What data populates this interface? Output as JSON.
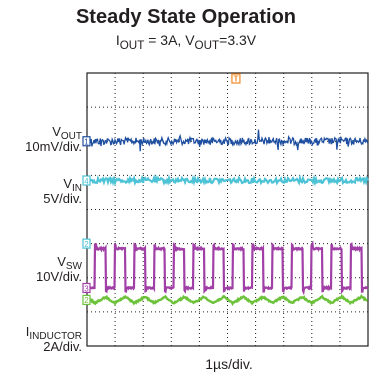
{
  "chart_data": {
    "type": "line",
    "title": "Steady State Operation",
    "subtitle": {
      "iout_sym": "I",
      "iout_sub": "OUT",
      "iout_val": " = 3A,  ",
      "vout_sym": "V",
      "vout_sub": "OUT",
      "vout_val": "=3.3V"
    },
    "xlabel": "1µs/div.",
    "grid": true,
    "divisions": {
      "x": 10,
      "y": 8
    },
    "timebase_us_per_div": 1,
    "switching_period_us": 0.7,
    "trigger_marker": "T",
    "series": [
      {
        "name": "VOUT",
        "sym": "V",
        "sub": "OUT",
        "scale": "10mV/div.",
        "channel": "1",
        "color": "#1f4fa0",
        "ground_div": 6.0,
        "waveform": "ripple-with-spikes"
      },
      {
        "name": "VIN",
        "sym": "V",
        "sub": "IN",
        "scale": "5V/div.",
        "channel": "4",
        "color": "#4ec3d6",
        "ground_div": 4.85,
        "waveform": "flat"
      },
      {
        "name": "VSW",
        "sym": "V",
        "sub": "SW",
        "scale": "10V/div.",
        "channel": "3",
        "color": "#a03fa6",
        "ground_div": 1.7,
        "amplitude_div": 1.15,
        "duty": 0.55,
        "waveform": "square"
      },
      {
        "name": "IINDUCTOR",
        "sym": "I",
        "sub": "INDUCTOR",
        "scale": "2A/div.",
        "channel": "2",
        "color": "#6cc23a",
        "ground_div": 1.35,
        "waveform": "triangle"
      }
    ],
    "extra_markers": [
      {
        "channel": "2",
        "color": "#4ec3d6",
        "level_div": 3.0
      }
    ]
  }
}
